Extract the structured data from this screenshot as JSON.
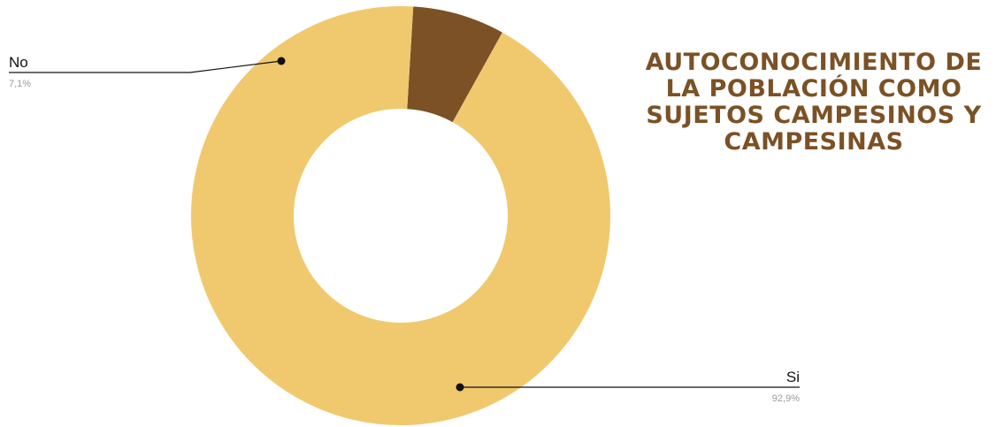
{
  "chart_data": {
    "type": "pie",
    "title": "AUTOCONOCIMIENTO DE LA POBLACIÓN COMO SUJETOS CAMPESINOS Y CAMPESINAS",
    "categories": [
      "No",
      "Si"
    ],
    "values": [
      7.1,
      92.9
    ],
    "value_labels": [
      "7,1%",
      "92,9%"
    ],
    "colors": [
      "#7b5125",
      "#f0c96f"
    ],
    "donut": true,
    "legend": "none"
  }
}
